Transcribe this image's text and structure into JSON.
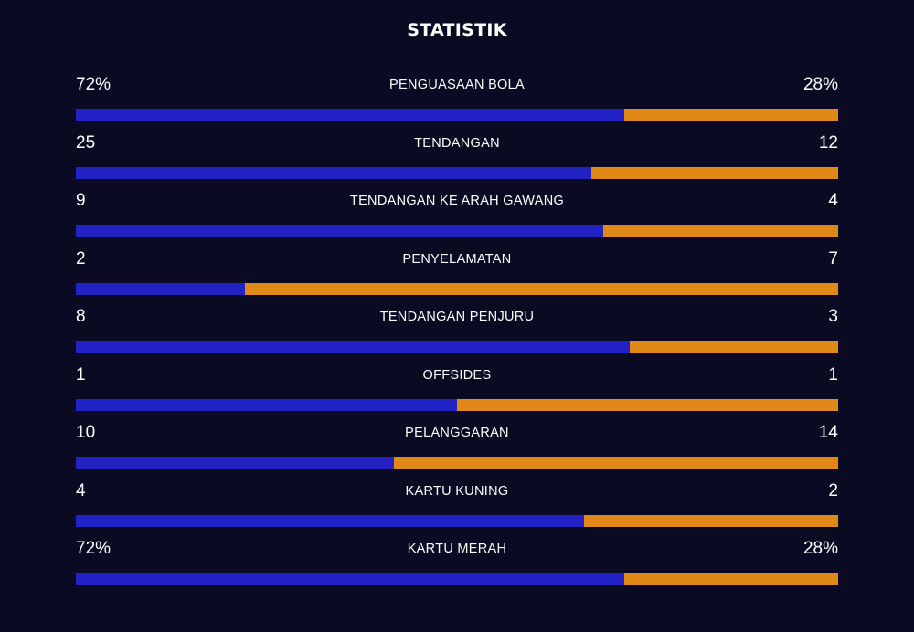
{
  "title": "STATISTIK",
  "colors": {
    "background": "#0a0a23",
    "home": "#2222c4",
    "away": "#e08918"
  },
  "stats": [
    {
      "label": "PENGUASAAN BOLA",
      "home": "72%",
      "away": "28%",
      "home_share": 0.72
    },
    {
      "label": "TENDANGAN",
      "home": "25",
      "away": "12",
      "home_share": 0.676
    },
    {
      "label": "TENDANGAN KE ARAH GAWANG",
      "home": "9",
      "away": "4",
      "home_share": 0.692
    },
    {
      "label": "PENYELAMATAN",
      "home": "2",
      "away": "7",
      "home_share": 0.222
    },
    {
      "label": "TENDANGAN PENJURU",
      "home": "8",
      "away": "3",
      "home_share": 0.727
    },
    {
      "label": "OFFSIDES",
      "home": "1",
      "away": "1",
      "home_share": 0.5
    },
    {
      "label": "PELANGGARAN",
      "home": "10",
      "away": "14",
      "home_share": 0.417
    },
    {
      "label": "KARTU KUNING",
      "home": "4",
      "away": "2",
      "home_share": 0.667
    },
    {
      "label": "KARTU MERAH",
      "home": "72%",
      "away": "28%",
      "home_share": 0.72
    }
  ]
}
